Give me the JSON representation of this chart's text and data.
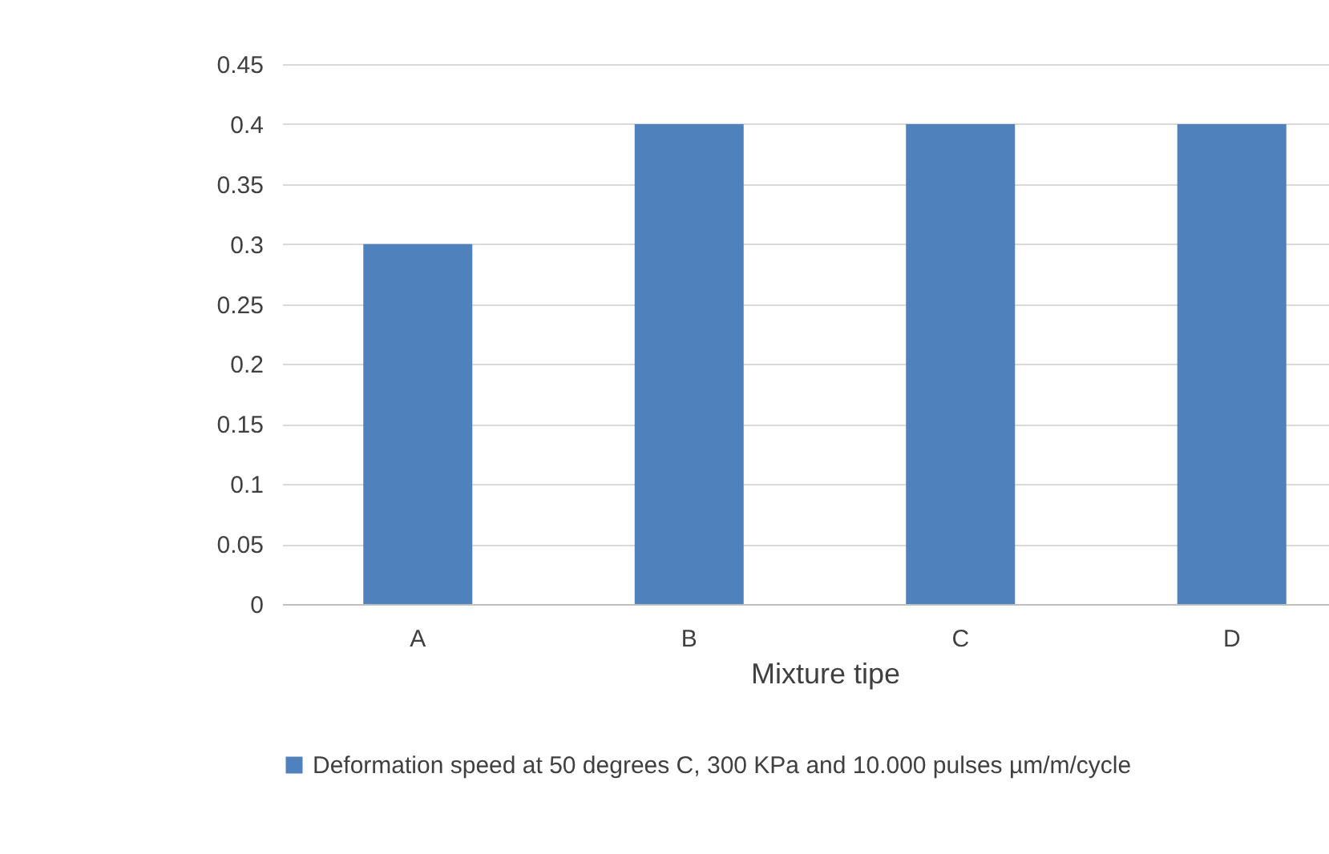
{
  "chart_data": {
    "type": "bar",
    "xlabel": "Mixture tipe",
    "categories": [
      "A",
      "B",
      "C",
      "D"
    ],
    "series": [
      {
        "name": "Deformation speed at 50 degrees C, 300 KPa and 10.000 pulses µm/m/cycle",
        "color": "#4f81bd",
        "values": [
          0.3,
          0.4,
          0.4,
          0.4
        ]
      }
    ],
    "ylim": [
      0,
      0.45
    ],
    "yticks": [
      0,
      0.05,
      0.1,
      0.15,
      0.2,
      0.25,
      0.3,
      0.35,
      0.4,
      0.45
    ],
    "grid": "y",
    "legend": "bottom"
  }
}
